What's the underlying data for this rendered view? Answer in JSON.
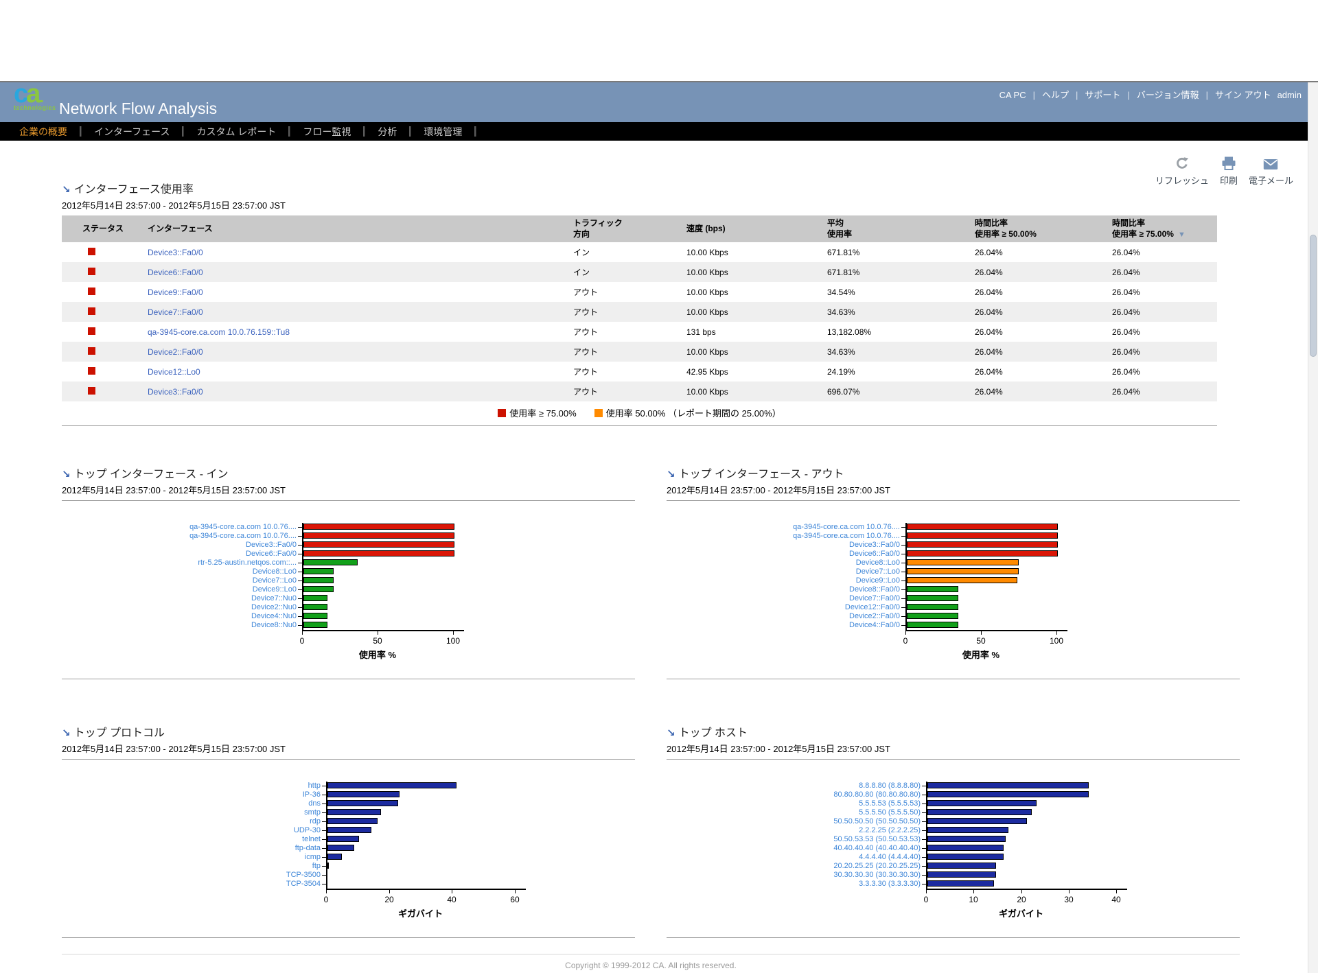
{
  "header": {
    "logo_main": "ca",
    "logo_sub": "technologies",
    "title": "Network Flow Analysis",
    "links": [
      "CA PC",
      "ヘルプ",
      "サポート",
      "バージョン情報",
      "サイン アウト"
    ],
    "user": "admin"
  },
  "nav": {
    "active_index": 0,
    "tabs": [
      "企業の概要",
      "インターフェース",
      "カスタム レポート",
      "フロー監視",
      "分析",
      "環境管理"
    ]
  },
  "toolbar": {
    "refresh_label": "リフレッシュ",
    "print_label": "印刷",
    "email_label": "電子メール"
  },
  "interface_utilization": {
    "title": "インターフェース使用率",
    "date_range": "2012年5月14日 23:57:00 - 2012年5月15日 23:57:00 JST",
    "status_color": "#CC1100",
    "columns": [
      {
        "lines": [
          "ステータス"
        ]
      },
      {
        "lines": [
          "インターフェース"
        ]
      },
      {
        "lines": [
          "トラフィック",
          "方向"
        ]
      },
      {
        "lines": [
          "速度 (bps)"
        ]
      },
      {
        "lines": [
          "平均",
          "使用率"
        ]
      },
      {
        "lines": [
          "時間比率",
          "使用率 ≥ 50.00%"
        ]
      },
      {
        "lines": [
          "時間比率",
          "使用率 ≥ 75.00%"
        ],
        "sort": "desc"
      }
    ],
    "rows": [
      {
        "interface": "Device3::Fa0/0",
        "direction": "イン",
        "speed": "10.00 Kbps",
        "avg_utilization": "671.81%",
        "time_ge_50": "26.04%",
        "time_ge_75": "26.04%"
      },
      {
        "interface": "Device6::Fa0/0",
        "direction": "イン",
        "speed": "10.00 Kbps",
        "avg_utilization": "671.81%",
        "time_ge_50": "26.04%",
        "time_ge_75": "26.04%"
      },
      {
        "interface": "Device9::Fa0/0",
        "direction": "アウト",
        "speed": "10.00 Kbps",
        "avg_utilization": "34.54%",
        "time_ge_50": "26.04%",
        "time_ge_75": "26.04%"
      },
      {
        "interface": "Device7::Fa0/0",
        "direction": "アウト",
        "speed": "10.00 Kbps",
        "avg_utilization": "34.63%",
        "time_ge_50": "26.04%",
        "time_ge_75": "26.04%"
      },
      {
        "interface": "qa-3945-core.ca.com 10.0.76.159::Tu8",
        "direction": "アウト",
        "speed": "131 bps",
        "avg_utilization": "13,182.08%",
        "time_ge_50": "26.04%",
        "time_ge_75": "26.04%"
      },
      {
        "interface": "Device2::Fa0/0",
        "direction": "アウト",
        "speed": "10.00 Kbps",
        "avg_utilization": "34.63%",
        "time_ge_50": "26.04%",
        "time_ge_75": "26.04%"
      },
      {
        "interface": "Device12::Lo0",
        "direction": "アウト",
        "speed": "42.95 Kbps",
        "avg_utilization": "24.19%",
        "time_ge_50": "26.04%",
        "time_ge_75": "26.04%"
      },
      {
        "interface": "Device3::Fa0/0",
        "direction": "アウト",
        "speed": "10.00 Kbps",
        "avg_utilization": "696.07%",
        "time_ge_50": "26.04%",
        "time_ge_75": "26.04%"
      }
    ],
    "legend": [
      {
        "color": "#CC1100",
        "label": "使用率 ≥ 75.00%"
      },
      {
        "color": "#FF8A00",
        "label": "使用率 50.00% （レポート期間の 25.00%）"
      }
    ]
  },
  "chart_data": [
    {
      "type": "bar",
      "orientation": "horizontal",
      "title": "トップ インターフェース - イン",
      "date_range": "2012年5月14日 23:57:00 - 2012年5月15日 23:57:00 JST",
      "xlabel": "使用率 %",
      "xlim": [
        0,
        100
      ],
      "xticks": [
        0,
        50,
        100
      ],
      "categories": [
        "qa-3945-core.ca.com 10.0.76....",
        "qa-3945-core.ca.com 10.0.76....",
        "Device3::Fa0/0",
        "Device6::Fa0/0",
        "rtr-5.25-austin.netqos.com::...",
        "Device8::Lo0",
        "Device7::Lo0",
        "Device9::Lo0",
        "Device7::Nu0",
        "Device2::Nu0",
        "Device4::Nu0",
        "Device8::Nu0"
      ],
      "values": [
        100,
        100,
        100,
        100,
        36,
        20,
        20,
        20,
        16,
        16,
        16,
        16
      ],
      "colors": [
        "#DB1607",
        "#DB1607",
        "#DB1607",
        "#DB1607",
        "#12A01A",
        "#12A01A",
        "#12A01A",
        "#12A01A",
        "#12A01A",
        "#12A01A",
        "#12A01A",
        "#12A01A"
      ]
    },
    {
      "type": "bar",
      "orientation": "horizontal",
      "title": "トップ インターフェース - アウト",
      "date_range": "2012年5月14日 23:57:00 - 2012年5月15日 23:57:00 JST",
      "xlabel": "使用率 %",
      "xlim": [
        0,
        100
      ],
      "xticks": [
        0,
        50,
        100
      ],
      "categories": [
        "qa-3945-core.ca.com 10.0.76....",
        "qa-3945-core.ca.com 10.0.76....",
        "Device3::Fa0/0",
        "Device6::Fa0/0",
        "Device8::Lo0",
        "Device7::Lo0",
        "Device9::Lo0",
        "Device8::Fa0/0",
        "Device7::Fa0/0",
        "Device12::Fa0/0",
        "Device2::Fa0/0",
        "Device4::Fa0/0"
      ],
      "values": [
        100,
        100,
        100,
        100,
        74,
        74,
        73,
        34,
        34,
        34,
        34,
        34
      ],
      "colors": [
        "#DB1607",
        "#DB1607",
        "#DB1607",
        "#DB1607",
        "#FF8A00",
        "#FF8A00",
        "#FF8A00",
        "#12A01A",
        "#12A01A",
        "#12A01A",
        "#12A01A",
        "#12A01A"
      ]
    },
    {
      "type": "bar",
      "orientation": "horizontal",
      "title": "トップ プロトコル",
      "date_range": "2012年5月14日 23:57:00 - 2012年5月15日 23:57:00 JST",
      "xlabel": "ギガバイト",
      "xlim": [
        0,
        60
      ],
      "xticks": [
        0,
        20,
        40,
        60
      ],
      "categories": [
        "http",
        "IP-36",
        "dns",
        "smtp",
        "rdp",
        "UDP-30",
        "telnet",
        "ftp-data",
        "icmp",
        "ftp",
        "TCP-3500",
        "TCP-3504"
      ],
      "values": [
        41,
        23,
        22.5,
        17,
        16,
        14,
        10,
        8.5,
        4.5,
        0.4,
        0,
        0
      ],
      "colors": [
        "#1C2BA0",
        "#1C2BA0",
        "#1C2BA0",
        "#1C2BA0",
        "#1C2BA0",
        "#1C2BA0",
        "#1C2BA0",
        "#1C2BA0",
        "#1C2BA0",
        "#1C2BA0",
        "#1C2BA0",
        "#1C2BA0"
      ]
    },
    {
      "type": "bar",
      "orientation": "horizontal",
      "title": "トップ ホスト",
      "date_range": "2012年5月14日 23:57:00 - 2012年5月15日 23:57:00 JST",
      "xlabel": "ギガバイト",
      "xlim": [
        0,
        40
      ],
      "xticks": [
        0,
        10,
        20,
        30,
        40
      ],
      "categories": [
        "8.8.8.80 (8.8.8.80)",
        "80.80.80.80 (80.80.80.80)",
        "5.5.5.53 (5.5.5.53)",
        "5.5.5.50 (5.5.5.50)",
        "50.50.50.50 (50.50.50.50)",
        "2.2.2.25 (2.2.2.25)",
        "50.50.53.53 (50.50.53.53)",
        "40.40.40.40 (40.40.40.40)",
        "4.4.4.40 (4.4.4.40)",
        "20.20.25.25 (20.20.25.25)",
        "30.30.30.30 (30.30.30.30)",
        "3.3.3.30 (3.3.3.30)"
      ],
      "values": [
        34,
        34,
        23,
        22,
        21,
        17,
        16.5,
        16,
        16,
        14.5,
        14.5,
        14
      ],
      "colors": [
        "#1C2BA0",
        "#1C2BA0",
        "#1C2BA0",
        "#1C2BA0",
        "#1C2BA0",
        "#1C2BA0",
        "#1C2BA0",
        "#1C2BA0",
        "#1C2BA0",
        "#1C2BA0",
        "#1C2BA0",
        "#1C2BA0"
      ]
    }
  ],
  "footer": {
    "copyright": "Copyright © 1999-2012 CA. All rights reserved."
  }
}
